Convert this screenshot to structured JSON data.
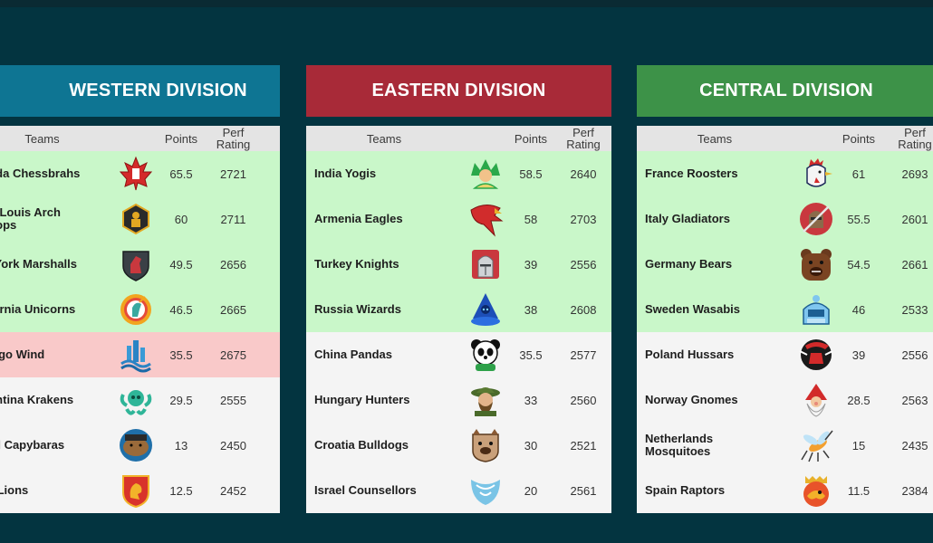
{
  "columns": {
    "teams": "Teams",
    "points": "Points",
    "perf_line1": "Perf",
    "perf_line2": "Rating"
  },
  "colors": {
    "western": "#0e7593",
    "eastern": "#a82a38",
    "central": "#3d9248",
    "promotion": "#c9f7c9",
    "relegation": "#f9c9c9"
  },
  "divisions": [
    {
      "title": "WESTERN DIVISION",
      "teams": [
        {
          "name": "nada Chessbrahs",
          "points": "65.5",
          "perf": "2721",
          "icon": "maple-leaf-icon"
        },
        {
          "name": "int Louis Arch\nshops",
          "points": "60",
          "perf": "2711",
          "icon": "arch-bishop-icon"
        },
        {
          "name": "w York Marshalls",
          "points": "49.5",
          "perf": "2656",
          "icon": "knight-shield-icon"
        },
        {
          "name": "lifornia Unicorns",
          "points": "46.5",
          "perf": "2665",
          "icon": "unicorn-icon"
        },
        {
          "name": "icago Wind",
          "points": "35.5",
          "perf": "2675",
          "icon": "wind-skyline-icon"
        },
        {
          "name": "gentina Krakens",
          "points": "29.5",
          "perf": "2555",
          "icon": "kraken-icon"
        },
        {
          "name": "azil Capybaras",
          "points": "13",
          "perf": "2450",
          "icon": "capybara-icon"
        },
        {
          "name": "K. Lions",
          "points": "12.5",
          "perf": "2452",
          "icon": "lion-crest-icon"
        }
      ]
    },
    {
      "title": "EASTERN DIVISION",
      "teams": [
        {
          "name": "India Yogis",
          "points": "58.5",
          "perf": "2640",
          "icon": "yogi-icon"
        },
        {
          "name": "Armenia Eagles",
          "points": "58",
          "perf": "2703",
          "icon": "eagle-icon"
        },
        {
          "name": "Turkey Knights",
          "points": "39",
          "perf": "2556",
          "icon": "knight-helmet-icon"
        },
        {
          "name": "Russia Wizards",
          "points": "38",
          "perf": "2608",
          "icon": "wizard-icon"
        },
        {
          "name": "China Pandas",
          "points": "35.5",
          "perf": "2577",
          "icon": "panda-icon"
        },
        {
          "name": "Hungary Hunters",
          "points": "33",
          "perf": "2560",
          "icon": "hunter-icon"
        },
        {
          "name": "Croatia Bulldogs",
          "points": "30",
          "perf": "2521",
          "icon": "bulldog-icon"
        },
        {
          "name": "Israel Counsellors",
          "points": "20",
          "perf": "2561",
          "icon": "counsellor-icon"
        }
      ]
    },
    {
      "title": "CENTRAL DIVISION",
      "teams": [
        {
          "name": "France Roosters",
          "points": "61",
          "perf": "2693",
          "icon": "rooster-icon"
        },
        {
          "name": "Italy Gladiators",
          "points": "55.5",
          "perf": "2601",
          "icon": "gladiator-icon"
        },
        {
          "name": "Germany Bears",
          "points": "54.5",
          "perf": "2661",
          "icon": "bear-icon"
        },
        {
          "name": "Sweden Wasabis",
          "points": "46",
          "perf": "2533",
          "icon": "wasabi-robot-icon"
        },
        {
          "name": "Poland Hussars",
          "points": "39",
          "perf": "2556",
          "icon": "hussar-icon"
        },
        {
          "name": "Norway Gnomes",
          "points": "28.5",
          "perf": "2563",
          "icon": "gnome-icon"
        },
        {
          "name": "Netherlands\nMosquitoes",
          "points": "15",
          "perf": "2435",
          "icon": "mosquito-icon"
        },
        {
          "name": "Spain Raptors",
          "points": "11.5",
          "perf": "2384",
          "icon": "raptor-icon"
        }
      ]
    }
  ]
}
